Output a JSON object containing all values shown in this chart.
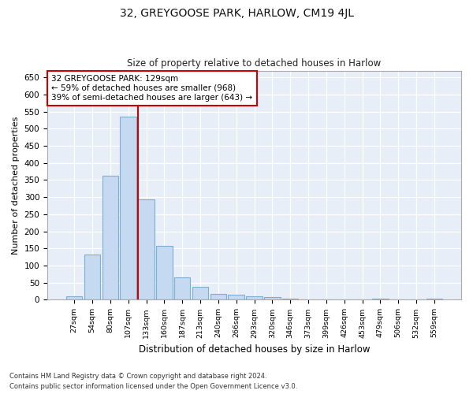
{
  "title": "32, GREYGOOSE PARK, HARLOW, CM19 4JL",
  "subtitle": "Size of property relative to detached houses in Harlow",
  "xlabel": "Distribution of detached houses by size in Harlow",
  "ylabel": "Number of detached properties",
  "bar_color": "#c5d9f0",
  "bar_edge_color": "#7bafd4",
  "bg_color": "#e8eef7",
  "grid_color": "#ffffff",
  "vline_color": "#cc0000",
  "vline_index": 4,
  "annotation_text": "32 GREYGOOSE PARK: 129sqm\n← 59% of detached houses are smaller (968)\n39% of semi-detached houses are larger (643) →",
  "annotation_box_facecolor": "#ffffff",
  "annotation_box_edgecolor": "#cc0000",
  "categories": [
    "27sqm",
    "54sqm",
    "80sqm",
    "107sqm",
    "133sqm",
    "160sqm",
    "187sqm",
    "213sqm",
    "240sqm",
    "266sqm",
    "293sqm",
    "320sqm",
    "346sqm",
    "373sqm",
    "399sqm",
    "426sqm",
    "453sqm",
    "479sqm",
    "506sqm",
    "532sqm",
    "559sqm"
  ],
  "values": [
    10,
    133,
    362,
    535,
    293,
    157,
    65,
    38,
    17,
    15,
    11,
    9,
    4,
    0,
    0,
    0,
    0,
    3,
    0,
    0,
    3
  ],
  "ylim": [
    0,
    670
  ],
  "yticks": [
    0,
    50,
    100,
    150,
    200,
    250,
    300,
    350,
    400,
    450,
    500,
    550,
    600,
    650
  ],
  "footnote1": "Contains HM Land Registry data © Crown copyright and database right 2024.",
  "footnote2": "Contains public sector information licensed under the Open Government Licence v3.0."
}
